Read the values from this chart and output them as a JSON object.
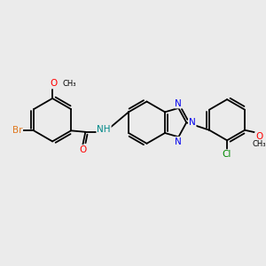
{
  "background_color": "#ebebeb",
  "atom_colors": {
    "Br": "#e07820",
    "O": "#ff0000",
    "N": "#0000ee",
    "Cl": "#008800",
    "NH": "#008888",
    "C": "#000000"
  },
  "bond_lw": 1.3,
  "font_size": 7.5,
  "xlim": [
    0,
    10
  ],
  "ylim": [
    0,
    10
  ]
}
